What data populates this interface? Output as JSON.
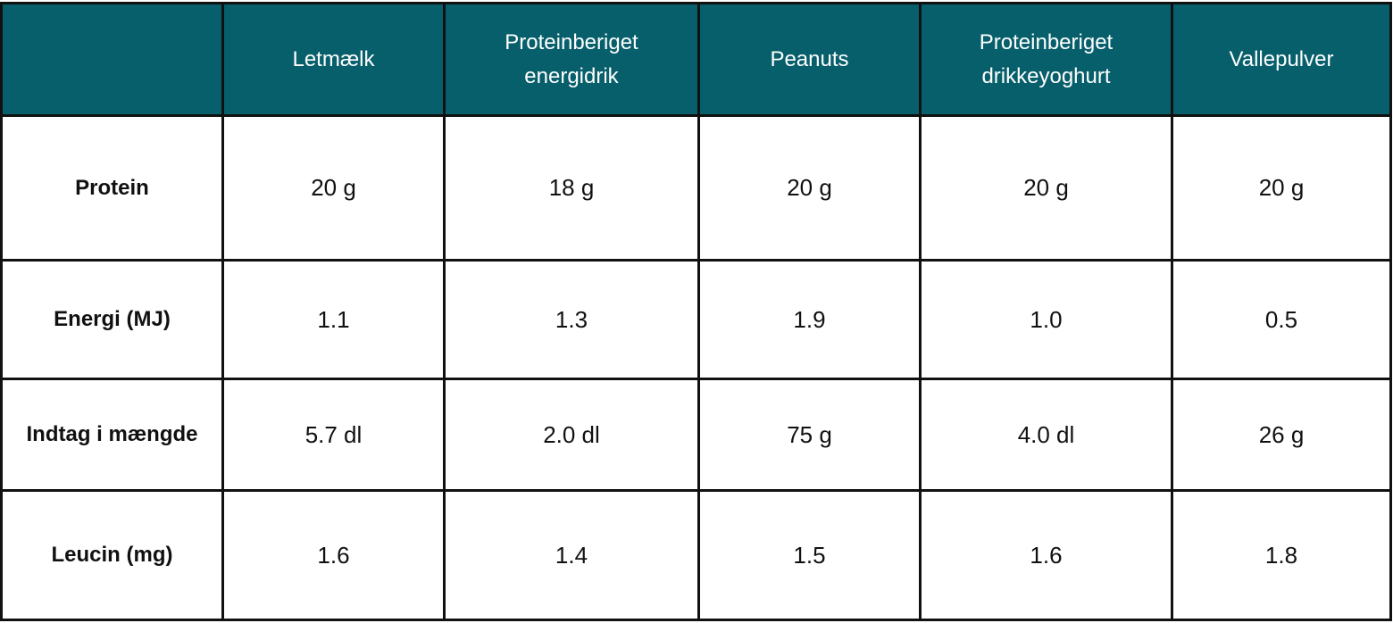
{
  "table": {
    "header": {
      "corner": "",
      "columns": [
        "Letmælk",
        "Proteinberiget energidrik",
        "Peanuts",
        "Proteinberiget drikkeyoghurt",
        "Vallepulver"
      ]
    },
    "rows": [
      {
        "label": "Protein",
        "cells": [
          "20 g",
          "18 g",
          "20 g",
          "20 g",
          "20 g"
        ]
      },
      {
        "label": "Energi (MJ)",
        "cells": [
          "1.1",
          "1.3",
          "1.9",
          "1.0",
          "0.5"
        ]
      },
      {
        "label": "Indtag i mængde",
        "cells": [
          "5.7 dl",
          "2.0 dl",
          "75 g",
          "4.0 dl",
          "26 g"
        ]
      },
      {
        "label": "Leucin (mg)",
        "cells": [
          "1.6",
          "1.4",
          "1.5",
          "1.6",
          "1.8"
        ]
      }
    ]
  },
  "colors": {
    "header_background": "#075f6b",
    "header_text": "#ffffff",
    "border": "#111111"
  }
}
